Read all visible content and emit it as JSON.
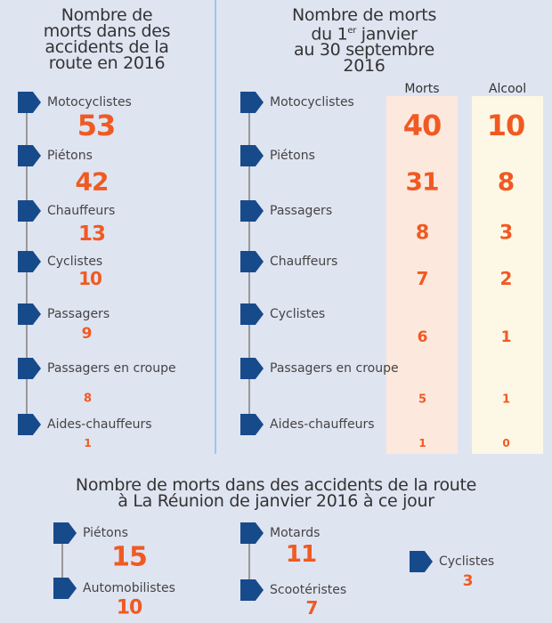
{
  "left": {
    "title": [
      "Nombre de",
      "morts dans des",
      "accidents de la",
      "route en 2016"
    ],
    "items": [
      {
        "label": "Motocyclistes",
        "value": "53"
      },
      {
        "label": "Piétons",
        "value": "42"
      },
      {
        "label": "Chauffeurs",
        "value": "13"
      },
      {
        "label": "Cyclistes",
        "value": "10"
      },
      {
        "label": "Passagers",
        "value": "9"
      },
      {
        "label": "Passagers en croupe",
        "value": "8"
      },
      {
        "label": "Aides-chauffeurs",
        "value": "1"
      }
    ]
  },
  "middle": {
    "title_line1": "Nombre de morts",
    "title_line2_pre": "du 1",
    "title_line2_sup": "er",
    "title_line2_post": " janvier",
    "title_line3": "au 30 septembre",
    "title_line4": "2016",
    "col_morts": "Morts",
    "col_alcool": "Alcool",
    "items": [
      {
        "label": "Motocyclistes",
        "morts": "40",
        "alcool": "10"
      },
      {
        "label": "Piétons",
        "morts": "31",
        "alcool": "8"
      },
      {
        "label": "Passagers",
        "morts": "8",
        "alcool": "3"
      },
      {
        "label": "Chauffeurs",
        "morts": "7",
        "alcool": "2"
      },
      {
        "label": "Cyclistes",
        "morts": "6",
        "alcool": "1"
      },
      {
        "label": "Passagers en croupe",
        "morts": "5",
        "alcool": "1"
      },
      {
        "label": "Aides-chauffeurs",
        "morts": "1",
        "alcool": "0"
      }
    ]
  },
  "bottom": {
    "title": [
      "Nombre de morts dans des accidents de la route",
      "à La Réunion de janvier 2016 à ce jour"
    ],
    "items": [
      {
        "label": "Piétons",
        "value": "15"
      },
      {
        "label": "Automobilistes",
        "value": "10"
      },
      {
        "label": "Motards",
        "value": "11"
      },
      {
        "label": "Scootéristes",
        "value": "7"
      },
      {
        "label": "Cyclistes",
        "value": "3"
      }
    ]
  },
  "colors": {
    "background": "#dfe4f1",
    "marker": "#174a8b",
    "number": "#f05a22",
    "morts_bg": "#fde8dd",
    "alcool_bg": "#fdf8e6"
  }
}
